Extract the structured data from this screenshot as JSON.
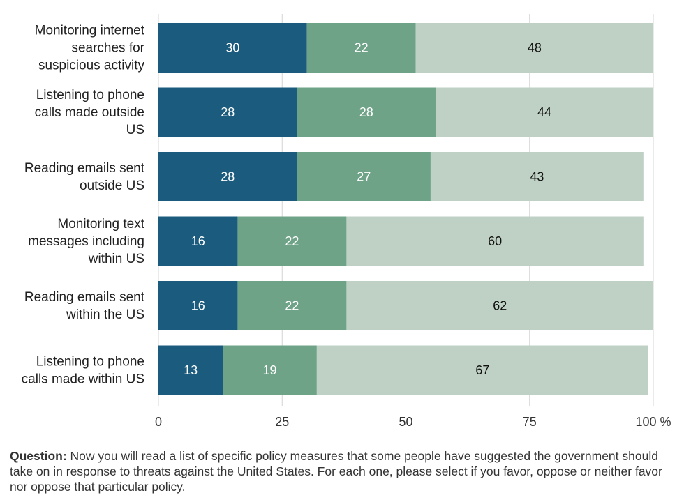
{
  "chart_data": {
    "type": "bar",
    "orientation": "horizontal",
    "stacked": true,
    "categories": [
      "Monitoring internet searches for suspicious activity",
      "Listening to phone calls made outside US",
      "Reading emails sent outside US",
      "Monitoring text messages including within US",
      "Reading emails sent within the US",
      "Listening to phone calls made within US"
    ],
    "series": [
      {
        "values": [
          30,
          28,
          28,
          16,
          16,
          13
        ],
        "color": "#1b5c7e"
      },
      {
        "values": [
          22,
          28,
          27,
          22,
          22,
          19
        ],
        "color": "#6fa387"
      },
      {
        "values": [
          48,
          44,
          43,
          60,
          62,
          67
        ],
        "color": "#bfd1c4"
      }
    ],
    "x_ticks": [
      "0",
      "25",
      "50",
      "75",
      "100 %"
    ],
    "xlim": [
      0,
      100
    ],
    "grid": true,
    "label_colors": [
      "#ffffff",
      "#ffffff",
      "#111111"
    ]
  },
  "note": {
    "question_label": "Question:",
    "question_text": "Now you will read a list of specific policy measures that some people have suggested the government should take on in response to threats against the United States. For each one, please select if you favor, oppose or neither favor nor oppose that particular policy."
  }
}
